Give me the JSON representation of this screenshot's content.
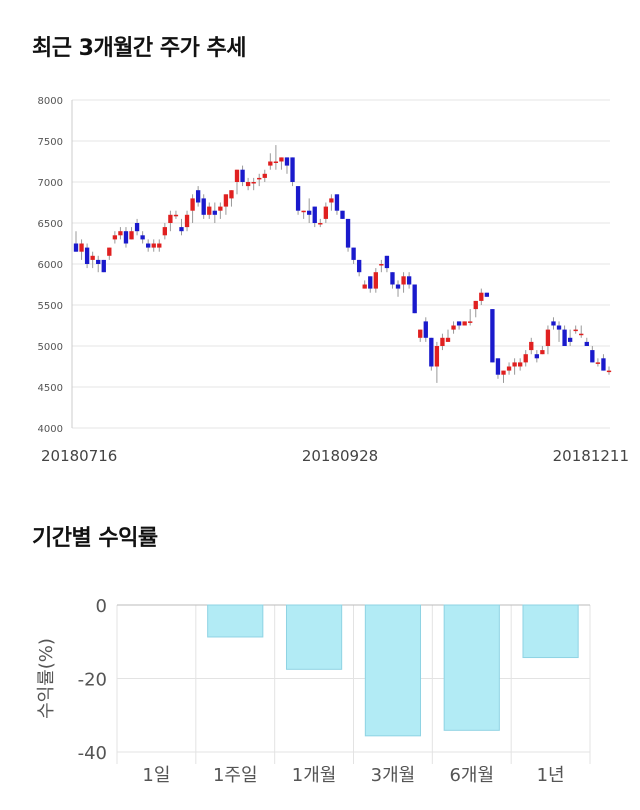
{
  "sections": {
    "price_title": "최근 3개월간 주가 추세",
    "return_title": "기간별 수익률"
  },
  "colors": {
    "up": "#e02020",
    "down": "#1a1acc",
    "bar_fill": "#b2ebf5",
    "bar_stroke": "#8fd3e3"
  },
  "chart_data": [
    {
      "type": "candlestick",
      "title": "최근 3개월간 주가 추세",
      "ylim": [
        4000,
        8000
      ],
      "yticks": [
        4000,
        4500,
        5000,
        5500,
        6000,
        6500,
        7000,
        7500,
        8000
      ],
      "xtick_labels": [
        "20180716",
        "20180928",
        "20181211"
      ],
      "grid": true,
      "candles": [
        [
          6250,
          6400,
          6150,
          6150
        ],
        [
          6150,
          6300,
          6050,
          6250
        ],
        [
          6200,
          6250,
          5950,
          6000
        ],
        [
          6050,
          6150,
          5950,
          6100
        ],
        [
          6050,
          6100,
          5900,
          6000
        ],
        [
          6050,
          6050,
          5900,
          5900
        ],
        [
          6100,
          6200,
          6050,
          6200
        ],
        [
          6300,
          6400,
          6250,
          6350
        ],
        [
          6350,
          6450,
          6300,
          6400
        ],
        [
          6400,
          6450,
          6200,
          6250
        ],
        [
          6300,
          6450,
          6300,
          6400
        ],
        [
          6500,
          6550,
          6350,
          6400
        ],
        [
          6350,
          6400,
          6250,
          6300
        ],
        [
          6250,
          6300,
          6150,
          6200
        ],
        [
          6200,
          6300,
          6150,
          6250
        ],
        [
          6200,
          6300,
          6150,
          6250
        ],
        [
          6350,
          6500,
          6300,
          6450
        ],
        [
          6500,
          6650,
          6400,
          6600
        ],
        [
          6600,
          6650,
          6550,
          6600
        ],
        [
          6450,
          6550,
          6350,
          6400
        ],
        [
          6450,
          6650,
          6400,
          6600
        ],
        [
          6650,
          6850,
          6500,
          6800
        ],
        [
          6900,
          6950,
          6700,
          6750
        ],
        [
          6800,
          6850,
          6550,
          6600
        ],
        [
          6600,
          6750,
          6550,
          6700
        ],
        [
          6650,
          6750,
          6500,
          6600
        ],
        [
          6650,
          6750,
          6550,
          6700
        ],
        [
          6700,
          6850,
          6600,
          6850
        ],
        [
          6800,
          6900,
          6700,
          6900
        ],
        [
          7000,
          7150,
          6850,
          7150
        ],
        [
          7150,
          7200,
          6950,
          7000
        ],
        [
          6950,
          7050,
          6900,
          7000
        ],
        [
          7000,
          7050,
          6900,
          7000
        ],
        [
          7050,
          7100,
          6950,
          7050
        ],
        [
          7050,
          7150,
          7000,
          7100
        ],
        [
          7200,
          7350,
          7150,
          7250
        ],
        [
          7250,
          7450,
          7150,
          7250
        ],
        [
          7250,
          7300,
          7150,
          7300
        ],
        [
          7300,
          7300,
          7100,
          7200
        ],
        [
          7300,
          7300,
          6950,
          7000
        ],
        [
          6950,
          6950,
          6600,
          6650
        ],
        [
          6650,
          6650,
          6550,
          6650
        ],
        [
          6650,
          6800,
          6500,
          6600
        ],
        [
          6700,
          6700,
          6450,
          6500
        ],
        [
          6500,
          6550,
          6450,
          6500
        ],
        [
          6550,
          6750,
          6500,
          6700
        ],
        [
          6750,
          6850,
          6650,
          6800
        ],
        [
          6850,
          6850,
          6600,
          6650
        ],
        [
          6650,
          6650,
          6550,
          6550
        ],
        [
          6550,
          6550,
          6150,
          6200
        ],
        [
          6200,
          6200,
          6000,
          6050
        ],
        [
          6050,
          6050,
          5850,
          5900
        ],
        [
          5700,
          5800,
          5700,
          5750
        ],
        [
          5850,
          5850,
          5650,
          5700
        ],
        [
          5700,
          5950,
          5650,
          5900
        ],
        [
          6000,
          6050,
          5900,
          6000
        ],
        [
          6100,
          6100,
          5900,
          5950
        ],
        [
          5900,
          5900,
          5700,
          5750
        ],
        [
          5750,
          5800,
          5600,
          5700
        ],
        [
          5750,
          5900,
          5650,
          5850
        ],
        [
          5850,
          5900,
          5700,
          5750
        ],
        [
          5750,
          5750,
          5400,
          5400
        ],
        [
          5100,
          5200,
          5050,
          5200
        ],
        [
          5300,
          5350,
          5050,
          5100
        ],
        [
          5100,
          5100,
          4700,
          4750
        ],
        [
          4750,
          5050,
          4550,
          5000
        ],
        [
          5000,
          5150,
          4950,
          5100
        ],
        [
          5050,
          5200,
          5050,
          5100
        ],
        [
          5200,
          5300,
          5150,
          5250
        ],
        [
          5300,
          5300,
          5200,
          5250
        ],
        [
          5250,
          5300,
          5250,
          5300
        ],
        [
          5300,
          5450,
          5250,
          5300
        ],
        [
          5450,
          5550,
          5350,
          5550
        ],
        [
          5550,
          5700,
          5500,
          5650
        ],
        [
          5650,
          5650,
          5600,
          5600
        ],
        [
          5450,
          5450,
          4800,
          4800
        ],
        [
          4850,
          4850,
          4600,
          4650
        ],
        [
          4650,
          4700,
          4550,
          4700
        ],
        [
          4700,
          4800,
          4650,
          4750
        ],
        [
          4750,
          4850,
          4650,
          4800
        ],
        [
          4750,
          4850,
          4700,
          4800
        ],
        [
          4800,
          4950,
          4750,
          4900
        ],
        [
          4950,
          5100,
          4900,
          5050
        ],
        [
          4900,
          4950,
          4800,
          4850
        ],
        [
          4900,
          5000,
          4900,
          4950
        ],
        [
          5000,
          5250,
          4900,
          5200
        ],
        [
          5300,
          5350,
          5200,
          5250
        ],
        [
          5250,
          5300,
          5050,
          5200
        ],
        [
          5200,
          5250,
          5000,
          5000
        ],
        [
          5100,
          5200,
          5000,
          5050
        ],
        [
          5200,
          5250,
          5150,
          5200
        ],
        [
          5150,
          5250,
          5100,
          5150
        ],
        [
          5050,
          5100,
          5000,
          5000
        ],
        [
          4950,
          5000,
          4800,
          4800
        ],
        [
          4800,
          4850,
          4750,
          4800
        ],
        [
          4850,
          4900,
          4700,
          4700
        ],
        [
          4700,
          4750,
          4650,
          4700
        ]
      ]
    },
    {
      "type": "bar",
      "title": "기간별 수익률",
      "ylabel": "수익률(%)",
      "ylim": [
        -40,
        0
      ],
      "yticks": [
        0,
        -20,
        -40
      ],
      "grid": true,
      "categories": [
        "1일",
        "1주일",
        "1개월",
        "3개월",
        "6개월",
        "1년"
      ],
      "values": [
        0,
        -8.7,
        -17.5,
        -35.6,
        -34.1,
        -14.3
      ]
    }
  ]
}
